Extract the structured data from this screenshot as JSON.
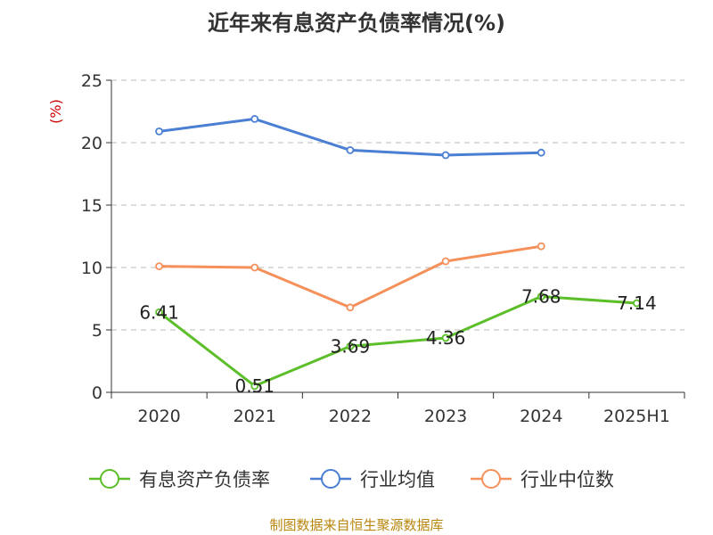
{
  "title": "近年来有息资产负债率情况(%)",
  "source": "制图数据来自恒生聚源数据库",
  "colors": {
    "debt_ratio": "#5cbf2a",
    "industry_avg": "#4a7fd4",
    "industry_median": "#f5905a",
    "unit": "#cc0000"
  },
  "chart_data": {
    "type": "line",
    "title": "近年来有息资产负债率情况(%)",
    "ylabel": "(%)",
    "xlabel": "",
    "categories": [
      "2020",
      "2021",
      "2022",
      "2023",
      "2024",
      "2025H1"
    ],
    "ylim": [
      0,
      25
    ],
    "yticks": [
      "0",
      "5",
      "10",
      "15",
      "20",
      "25"
    ],
    "grid": true,
    "legend_position": "bottom",
    "series": [
      {
        "name": "有息资产负债率",
        "values": [
          6.41,
          0.51,
          3.69,
          4.36,
          7.68,
          7.14
        ],
        "labels": [
          "6.41",
          "0.51",
          "3.69",
          "4.36",
          "7.68",
          "7.14"
        ],
        "show_labels": true
      },
      {
        "name": "行业均值",
        "values": [
          20.9,
          21.9,
          19.4,
          19.0,
          19.2,
          null
        ],
        "show_labels": false
      },
      {
        "name": "行业中位数",
        "values": [
          10.1,
          10.0,
          6.8,
          10.5,
          11.7,
          null
        ],
        "show_labels": false
      }
    ]
  }
}
